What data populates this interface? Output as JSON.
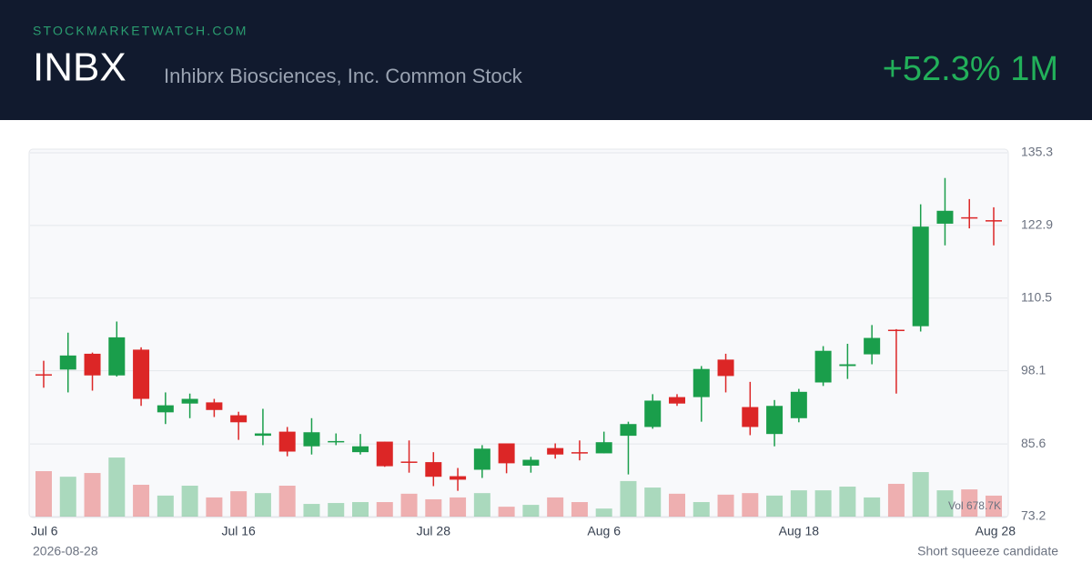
{
  "header": {
    "site": "STOCKMARKETWATCH.COM",
    "ticker": "INBX",
    "name": "Inhibrx Biosciences, Inc. Common Stock",
    "change": "+52.3% 1M"
  },
  "footer": {
    "date": "2026-08-28",
    "note": "Short squeeze candidate"
  },
  "chart_data": {
    "type": "candlestick",
    "categories": [
      "Jul 6",
      null,
      null,
      null,
      null,
      null,
      null,
      null,
      "Jul 16",
      null,
      null,
      null,
      null,
      null,
      null,
      null,
      "Jul 28",
      null,
      null,
      null,
      null,
      null,
      null,
      "Aug 6",
      null,
      null,
      null,
      null,
      null,
      null,
      null,
      "Aug 18",
      null,
      null,
      null,
      null,
      null,
      null,
      null,
      "Aug 28"
    ],
    "open": [
      97.5,
      98.3,
      101.0,
      97.3,
      101.7,
      91.0,
      92.5,
      92.7,
      90.5,
      87.0,
      87.7,
      85.2,
      85.9,
      84.2,
      86.0,
      82.6,
      82.5,
      80.1,
      81.2,
      85.7,
      81.9,
      84.9,
      84.2,
      84.0,
      87.0,
      88.5,
      93.6,
      93.6,
      100.0,
      91.9,
      87.3,
      90.0,
      96.1,
      98.9,
      100.9,
      105.1,
      105.7,
      123.2,
      124.3,
      123.8
    ],
    "high": [
      99.8,
      104.6,
      101.2,
      106.5,
      102.1,
      94.4,
      94.2,
      93.3,
      91.1,
      91.6,
      88.5,
      90.0,
      87.4,
      87.3,
      86.0,
      86.2,
      84.2,
      81.5,
      85.4,
      85.7,
      83.4,
      85.7,
      86.2,
      87.7,
      89.4,
      94.1,
      94.1,
      98.9,
      101.0,
      96.2,
      93.1,
      95.0,
      102.3,
      102.7,
      105.9,
      105.2,
      126.5,
      131.0,
      127.4,
      126.0
    ],
    "low": [
      95.2,
      94.4,
      94.7,
      97.1,
      92.1,
      89.0,
      90.0,
      90.2,
      86.3,
      85.4,
      83.5,
      83.8,
      85.4,
      83.8,
      81.7,
      80.7,
      78.4,
      77.6,
      79.8,
      80.6,
      80.7,
      83.1,
      82.8,
      84.0,
      80.4,
      88.2,
      92.1,
      89.4,
      94.4,
      87.1,
      85.2,
      89.3,
      95.5,
      96.7,
      99.2,
      94.2,
      104.8,
      119.5,
      122.4,
      119.5
    ],
    "close": [
      97.4,
      100.7,
      97.3,
      103.8,
      93.3,
      92.2,
      93.3,
      91.4,
      89.3,
      87.4,
      84.3,
      87.6,
      86.1,
      85.2,
      81.8,
      82.5,
      80.0,
      79.5,
      84.8,
      82.3,
      82.9,
      83.8,
      84.0,
      85.9,
      89.0,
      93.0,
      92.5,
      98.4,
      97.2,
      88.5,
      92.1,
      94.5,
      101.5,
      99.2,
      103.7,
      104.9,
      122.7,
      125.4,
      124.1,
      123.7
    ],
    "volume": [
      1470,
      1290,
      1410,
      1910,
      1030,
      680,
      1000,
      620,
      820,
      760,
      1000,
      410,
      440,
      470,
      470,
      740,
      560,
      620,
      760,
      320,
      380,
      620,
      470,
      260,
      1150,
      940,
      740,
      470,
      710,
      760,
      680,
      850,
      850,
      970,
      620,
      1060,
      1440,
      850,
      880,
      678.7
    ],
    "volume_label": "Vol 678.7K",
    "vol_ylim": [
      0,
      3000
    ],
    "ylim": [
      73.2,
      135.3
    ],
    "yticks": [
      135.3,
      122.9,
      110.5,
      98.1,
      85.6,
      73.2
    ],
    "grid": true,
    "up_color": "#1a9e4b",
    "down_color": "#dc2626"
  }
}
